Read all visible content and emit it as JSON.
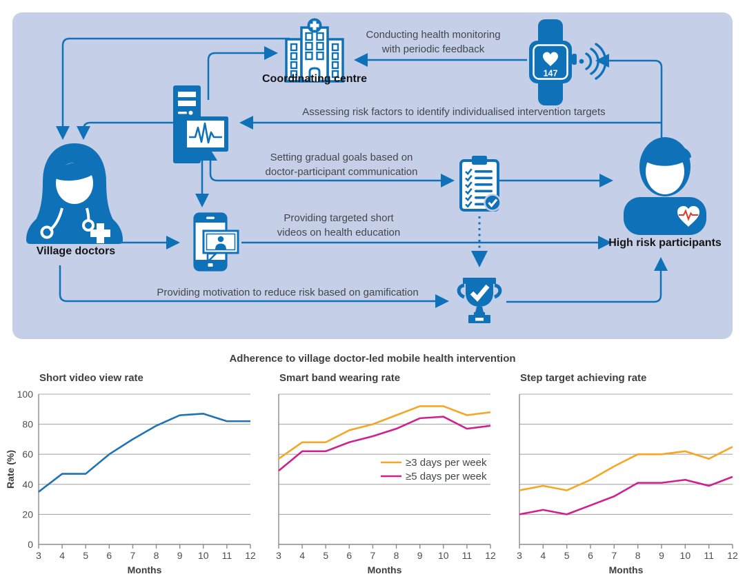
{
  "figure": {
    "colors": {
      "panel_bg": "#c5cfe8",
      "icon_blue": "#0f71b8",
      "annotation_text": "#43464a",
      "label_text": "#141414",
      "grid_gray": "#a9a9a9",
      "spine_gray": "#8b8b8b",
      "ecg_red": "#e0362c"
    },
    "diagram": {
      "nodes": {
        "coordinating_centre": "Coordinating centre",
        "village_doctors": "Village doctors",
        "high_risk_participants": "High risk participants"
      },
      "watch_reading": "147",
      "annotations": {
        "monitoring": "Conducting health monitoring\nwith periodic feedback",
        "assessing": "Assessing risk factors to identify individualised intervention targets",
        "goals": "Setting gradual goals based on\ndoctor-participant communication",
        "videos": "Providing targeted short\nvideos on health education",
        "gamification": "Providing motivation to reduce risk based on gamification"
      }
    },
    "charts_title": "Adherence to village doctor-led mobile health intervention"
  },
  "chart_data": [
    {
      "type": "line",
      "title": "Short video view rate",
      "x": [
        3,
        4,
        5,
        6,
        7,
        8,
        9,
        10,
        11,
        12
      ],
      "xlabel": "Months",
      "ylabel": "Rate (%)",
      "ylim": [
        0,
        100
      ],
      "yticks": [
        0,
        20,
        40,
        60,
        80,
        100
      ],
      "grid": true,
      "legend_visible": false,
      "series": [
        {
          "name": "View rate",
          "color": "#1e73b4",
          "values": [
            35,
            47,
            47,
            60,
            70,
            79,
            86,
            87,
            82,
            82
          ]
        }
      ]
    },
    {
      "type": "line",
      "title": "Smart band wearing rate",
      "x": [
        3,
        4,
        5,
        6,
        7,
        8,
        9,
        10,
        11,
        12
      ],
      "xlabel": "Months",
      "ylabel": "",
      "ylim": [
        0,
        100
      ],
      "yticks": [
        0,
        20,
        40,
        60,
        80,
        100
      ],
      "grid": true,
      "legend_visible": true,
      "legend_position": "middle-right",
      "series": [
        {
          "name": "≥3 days per week",
          "color": "#f6a623",
          "values": [
            57,
            68,
            68,
            76,
            80,
            86,
            92,
            92,
            86,
            88
          ]
        },
        {
          "name": "≥5 days per week",
          "color": "#d0208e",
          "values": [
            49,
            62,
            62,
            68,
            72,
            77,
            84,
            85,
            77,
            79
          ]
        }
      ]
    },
    {
      "type": "line",
      "title": "Step target achieving rate",
      "x": [
        3,
        4,
        5,
        6,
        7,
        8,
        9,
        10,
        11,
        12
      ],
      "xlabel": "Months",
      "ylabel": "",
      "ylim": [
        0,
        100
      ],
      "yticks": [
        0,
        20,
        40,
        60,
        80,
        100
      ],
      "grid": true,
      "legend_visible": false,
      "series": [
        {
          "name": "≥3 days per week",
          "color": "#f6a623",
          "values": [
            36,
            39,
            36,
            43,
            52,
            60,
            60,
            62,
            57,
            65
          ]
        },
        {
          "name": "≥5 days per week",
          "color": "#d0208e",
          "values": [
            20,
            23,
            20,
            26,
            32,
            41,
            41,
            43,
            39,
            45
          ]
        }
      ]
    }
  ]
}
